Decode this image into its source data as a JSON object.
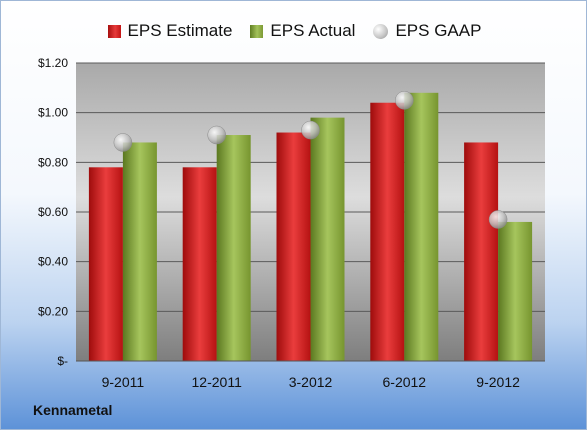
{
  "legend": {
    "estimate": "EPS Estimate",
    "actual": "EPS Actual",
    "gaap": "EPS GAAP"
  },
  "company": "Kennametal",
  "colors": {
    "estimate": "#d42020",
    "actual": "#8fae45",
    "gaap": "#b5b5b5"
  },
  "chart_data": {
    "type": "bar",
    "categories": [
      "9-2011",
      "12-2011",
      "3-2012",
      "6-2012",
      "9-2012"
    ],
    "series": [
      {
        "name": "EPS Estimate",
        "values": [
          0.78,
          0.78,
          0.92,
          1.04,
          0.88
        ],
        "mark": "bar"
      },
      {
        "name": "EPS Actual",
        "values": [
          0.88,
          0.91,
          0.98,
          1.08,
          0.56
        ],
        "mark": "bar"
      },
      {
        "name": "EPS GAAP",
        "values": [
          0.88,
          0.91,
          0.93,
          1.05,
          0.57
        ],
        "mark": "point"
      }
    ],
    "ylim": [
      0,
      1.2
    ],
    "yticks": [
      {
        "value": 0,
        "label": "$-"
      },
      {
        "value": 0.2,
        "label": "$0.20"
      },
      {
        "value": 0.4,
        "label": "$0.40"
      },
      {
        "value": 0.6,
        "label": "$0.60"
      },
      {
        "value": 0.8,
        "label": "$0.80"
      },
      {
        "value": 1.0,
        "label": "$1.00"
      },
      {
        "value": 1.2,
        "label": "$1.20"
      }
    ],
    "grid": true,
    "legend_position": "top"
  }
}
